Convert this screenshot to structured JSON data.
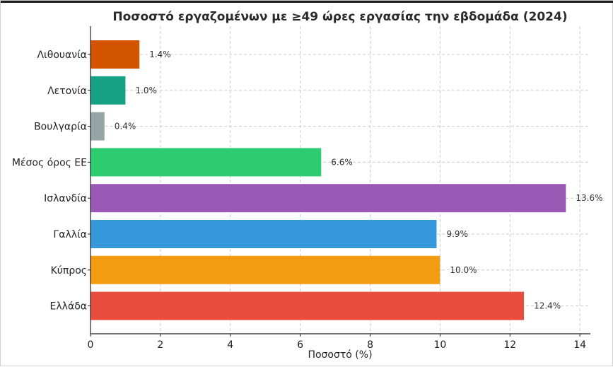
{
  "chart_data": {
    "type": "bar",
    "orientation": "horizontal",
    "title": "Ποσοστό εργαζομένων με ≥49 ώρες εργασίας την εβδομάδα (2024)",
    "xlabel": "Ποσοστό (%)",
    "ylabel": "",
    "categories": [
      "Λιθουανία",
      "Λετονία",
      "Βουλγαρία",
      "Μέσος όρος ΕΕ",
      "Ισλανδία",
      "Γαλλία",
      "Κύπρος",
      "Ελλάδα"
    ],
    "values": [
      1.4,
      1.0,
      0.4,
      6.6,
      13.6,
      9.9,
      10.0,
      12.4
    ],
    "value_labels": [
      "1.4%",
      "1.0%",
      "0.4%",
      "6.6%",
      "13.6%",
      "9.9%",
      "10.0%",
      "12.4%"
    ],
    "colors": [
      "#d35400",
      "#16a085",
      "#95a5a6",
      "#2ecc71",
      "#9b59b6",
      "#3498db",
      "#f39c12",
      "#e74c3c"
    ],
    "xlim": [
      0,
      14.3
    ],
    "xticks": [
      0,
      2,
      4,
      6,
      8,
      10,
      12,
      14
    ],
    "grid": true
  }
}
